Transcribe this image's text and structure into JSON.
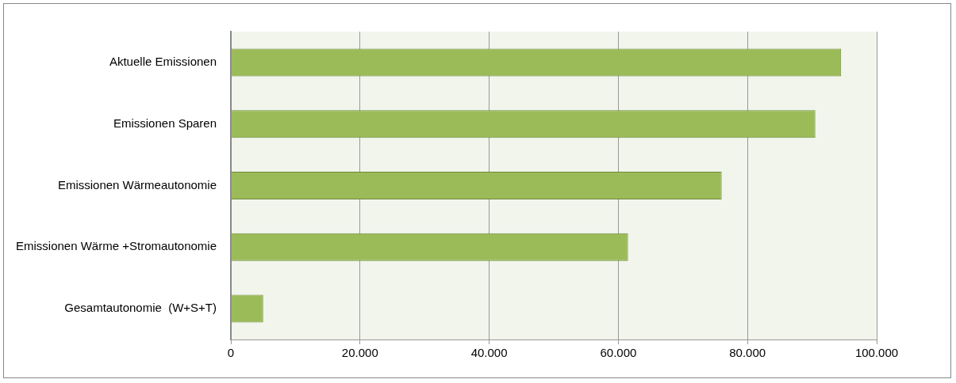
{
  "chart_data": {
    "type": "bar",
    "orientation": "horizontal",
    "categories": [
      "Aktuelle Emissionen",
      "Emissionen Sparen",
      "Emissionen Wärmeautonomie",
      "Emissionen Wärme +Stromautonomie",
      "Gesamtautonomie  (W+S+T)"
    ],
    "values": [
      94500,
      90500,
      76000,
      61500,
      5000
    ],
    "color": "#9bbb59",
    "xlim": [
      0,
      100000
    ],
    "xticks": [
      0,
      {
        "value": 20000,
        "label": "20.000"
      },
      {
        "value": 40000,
        "label": "40.000"
      },
      {
        "value": 60000,
        "label": "60.000"
      },
      {
        "value": 80000,
        "label": "80.000"
      },
      {
        "value": 100000,
        "label": "100.000"
      }
    ],
    "grid": "x"
  }
}
